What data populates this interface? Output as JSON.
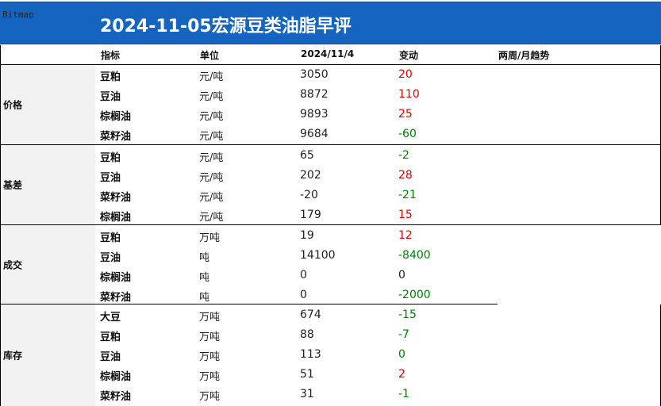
{
  "image_label": "Bitmap",
  "title": "2024-11-05宏源豆类油脂早评",
  "columns": {
    "indicator": "指标",
    "unit": "单位",
    "date": "2024/11/4",
    "change": "变动",
    "trend": "两周/月趋势"
  },
  "colors": {
    "banner": "#1565c0",
    "up": "#e00000",
    "down": "#008000"
  },
  "sections": [
    {
      "category": "价格",
      "rows": [
        {
          "name": "豆粕",
          "unit": "元/吨",
          "value": "3050",
          "change": "20",
          "dir": "up"
        },
        {
          "name": "豆油",
          "unit": "元/吨",
          "value": "8872",
          "change": "110",
          "dir": "up"
        },
        {
          "name": "棕榈油",
          "unit": "元/吨",
          "value": "9893",
          "change": "25",
          "dir": "up"
        },
        {
          "name": "菜籽油",
          "unit": "元/吨",
          "value": "9684",
          "change": "-60",
          "dir": "down"
        }
      ]
    },
    {
      "category": "基差",
      "rows": [
        {
          "name": "豆粕",
          "unit": "元/吨",
          "value": "65",
          "change": "-2",
          "dir": "down"
        },
        {
          "name": "豆油",
          "unit": "元/吨",
          "value": "202",
          "change": "28",
          "dir": "up"
        },
        {
          "name": "菜籽油",
          "unit": "元/吨",
          "value": "-20",
          "change": "-21",
          "dir": "down"
        },
        {
          "name": "棕榈油",
          "unit": "元/吨",
          "value": "179",
          "change": "15",
          "dir": "up"
        }
      ]
    },
    {
      "category": "成交",
      "rows": [
        {
          "name": "豆粕",
          "unit": "万吨",
          "value": "19",
          "change": "12",
          "dir": "up"
        },
        {
          "name": "豆油",
          "unit": "吨",
          "value": "14100",
          "change": "-8400",
          "dir": "down"
        },
        {
          "name": "棕榈油",
          "unit": "吨",
          "value": "0",
          "change": "0",
          "dir": "flat"
        },
        {
          "name": "菜籽油",
          "unit": "吨",
          "value": "0",
          "change": "-2000",
          "dir": "down"
        }
      ]
    },
    {
      "category": "库存",
      "rows": [
        {
          "name": "大豆",
          "unit": "万吨",
          "value": "674",
          "change": "-15",
          "dir": "down"
        },
        {
          "name": "豆粕",
          "unit": "万吨",
          "value": "88",
          "change": "-7",
          "dir": "down"
        },
        {
          "name": "豆油",
          "unit": "万吨",
          "value": "113",
          "change": "0",
          "dir": "down"
        },
        {
          "name": "棕榈油",
          "unit": "万吨",
          "value": "51",
          "change": "2",
          "dir": "up"
        },
        {
          "name": "菜籽油",
          "unit": "万吨",
          "value": "31",
          "change": "-1",
          "dir": "down"
        }
      ]
    }
  ]
}
